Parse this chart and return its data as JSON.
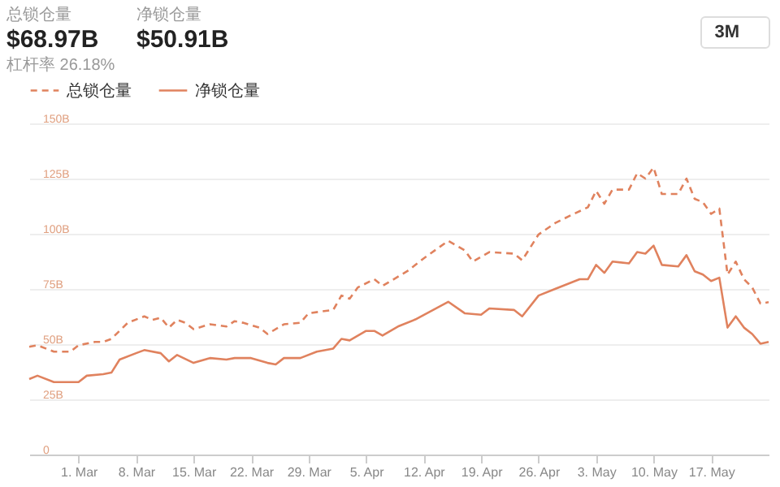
{
  "chart_data": {
    "type": "line",
    "annotations": [
      "总锁仓量",
      "$68.97B",
      "杠杆率 26.18%",
      "净锁仓量",
      "$50.91B",
      "3M"
    ],
    "legend": "top left",
    "grid": "y",
    "marker": "none",
    "xlim": [
      "--02-23",
      "--05-24"
    ],
    "xticks": [
      {
        "value": "--03-01",
        "label": "1. Mar"
      },
      {
        "value": "--03-08",
        "label": "8. Mar"
      },
      {
        "value": "--03-15",
        "label": "15. Mar"
      },
      {
        "value": "--03-22",
        "label": "22. Mar"
      },
      {
        "value": "--03-29",
        "label": "29. Mar"
      },
      {
        "value": "--04-05",
        "label": "5. Apr"
      },
      {
        "value": "--04-12",
        "label": "12. Apr"
      },
      {
        "value": "--04-19",
        "label": "19. Apr"
      },
      {
        "value": "--04-26",
        "label": "26. Apr"
      },
      {
        "value": "--05-03",
        "label": "3. May"
      },
      {
        "value": "--05-10",
        "label": "10. May"
      },
      {
        "value": "--05-17",
        "label": "17. May"
      }
    ],
    "ylim": [
      0,
      150
    ],
    "yticks": [
      0,
      {
        "value": 25,
        "label": "25B"
      },
      {
        "value": 50,
        "label": "50B"
      },
      {
        "value": 75,
        "label": "75B"
      },
      {
        "value": 100,
        "label": "100B"
      },
      {
        "value": 125,
        "label": "125B"
      },
      {
        "value": 150,
        "label": "150B"
      }
    ],
    "series": [
      {
        "name": "总锁仓量",
        "color": "#e0825e",
        "line_style": "dashed",
        "x": [
          "--02-23",
          "--02-24",
          "--02-26",
          "--02-28",
          "--03-01",
          "--03-03",
          "--03-04",
          "--03-05",
          "--03-07",
          "--03-09",
          "--03-10",
          "--03-11",
          "--03-12",
          "--03-13",
          "--03-14",
          "--03-15",
          "--03-17",
          "--03-19",
          "--03-20",
          "--03-21",
          "--03-23",
          "--03-24",
          "--03-26",
          "--03-28",
          "--03-29",
          "--04-01",
          "--04-02",
          "--04-03",
          "--04-04",
          "--04-06",
          "--04-07",
          "--04-10",
          "--04-12",
          "--04-15",
          "--04-17",
          "--04-18",
          "--04-20",
          "--04-23",
          "--04-24",
          "--04-26",
          "--04-28",
          "--04-30",
          "--05-02",
          "--05-03",
          "--05-04",
          "--05-05",
          "--05-07",
          "--05-08",
          "--05-09",
          "--05-10",
          "--05-11",
          "--05-13",
          "--05-14",
          "--05-15",
          "--05-16",
          "--05-17",
          "--05-18",
          "--05-19",
          "--05-20",
          "--05-21",
          "--05-22",
          "--05-23",
          "--05-24"
        ],
        "values": [
          48.8,
          49.5,
          46.6,
          46.6,
          49.5,
          51,
          51,
          52.4,
          59.7,
          62.6,
          61,
          62,
          57.5,
          61,
          59.7,
          56.8,
          59,
          58,
          60.4,
          59.7,
          57.5,
          54.6,
          59,
          59.7,
          64,
          65.5,
          72,
          70.6,
          75.7,
          79.4,
          76.4,
          83,
          88.8,
          96.8,
          92.5,
          87.4,
          91.7,
          91,
          88,
          99.7,
          104.8,
          108.5,
          112,
          119.4,
          113.6,
          120,
          120,
          127.4,
          125,
          130,
          118,
          118,
          125,
          115.8,
          114.3,
          109,
          111.4,
          81.5,
          87.4,
          79.4,
          75.7,
          68.4,
          69
        ]
      },
      {
        "name": "净锁仓量",
        "color": "#e0825e",
        "line_style": "solid",
        "x": [
          "--02-23",
          "--02-24",
          "--02-26",
          "--02-28",
          "--03-01",
          "--03-02",
          "--03-04",
          "--03-05",
          "--03-06",
          "--03-08",
          "--03-09",
          "--03-11",
          "--03-12",
          "--03-13",
          "--03-15",
          "--03-17",
          "--03-19",
          "--03-20",
          "--03-22",
          "--03-24",
          "--03-25",
          "--03-26",
          "--03-28",
          "--03-30",
          "--04-01",
          "--04-02",
          "--04-03",
          "--04-05",
          "--04-06",
          "--04-07",
          "--04-09",
          "--04-11",
          "--04-15",
          "--04-17",
          "--04-19",
          "--04-20",
          "--04-23",
          "--04-24",
          "--04-26",
          "--04-28",
          "--05-01",
          "--05-02",
          "--05-03",
          "--05-04",
          "--05-05",
          "--05-07",
          "--05-08",
          "--05-09",
          "--05-10",
          "--05-11",
          "--05-13",
          "--05-14",
          "--05-15",
          "--05-16",
          "--05-17",
          "--05-18",
          "--05-19",
          "--05-20",
          "--05-21",
          "--05-22",
          "--05-23",
          "--05-24"
        ],
        "values": [
          34.2,
          35.7,
          32.8,
          32.8,
          32.8,
          35.7,
          36.4,
          37.1,
          43,
          45.9,
          47.3,
          45.9,
          42.2,
          45.1,
          41.5,
          43.7,
          43,
          43.7,
          43.7,
          41.5,
          40.8,
          43.7,
          43.7,
          46.6,
          48,
          52.4,
          51.7,
          56,
          56,
          53.9,
          58.2,
          61.2,
          69.2,
          64,
          63.3,
          66.2,
          65.5,
          62.6,
          72,
          75,
          79.4,
          79.4,
          85.9,
          82.3,
          87.4,
          86.6,
          91.7,
          91,
          94.6,
          85.9,
          85.2,
          90.3,
          83,
          81.5,
          78.6,
          80.1,
          57.5,
          62.6,
          57.5,
          54.6,
          50.2,
          51
        ]
      }
    ]
  }
}
